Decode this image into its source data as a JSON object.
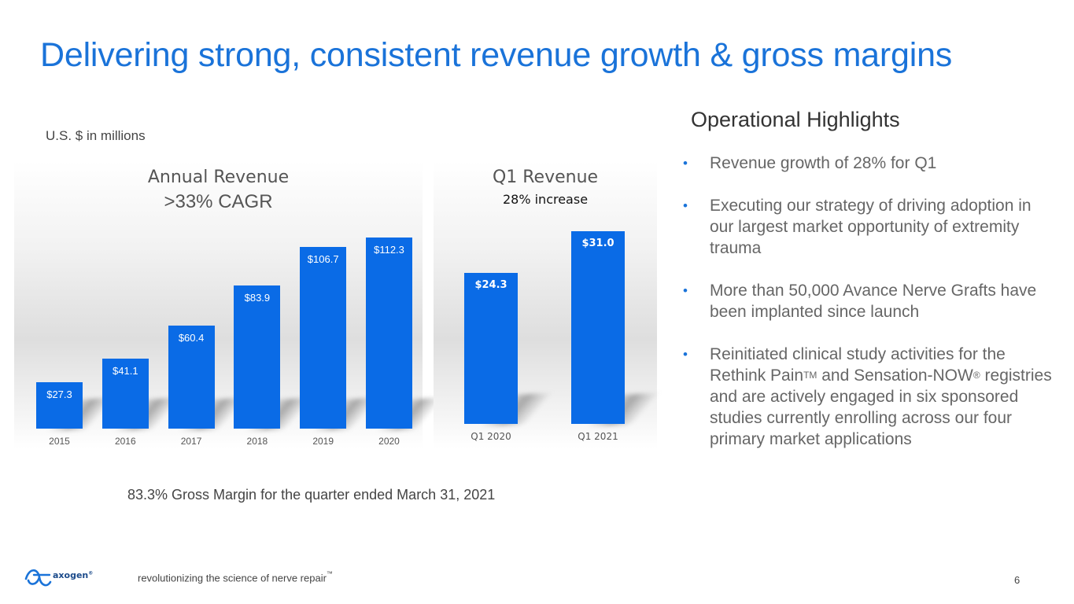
{
  "title": "Delivering strong, consistent revenue growth & gross margins",
  "units_note": "U.S. $ in millions",
  "gross_margin_note": "83.3% Gross Margin for the quarter ended March 31, 2021",
  "colors": {
    "accent": "#1a73d9",
    "bar": "#0a6be6"
  },
  "chart_data": [
    {
      "type": "bar",
      "title": "Annual Revenue",
      "subtitle": ">33% CAGR",
      "categories": [
        "2015",
        "2016",
        "2017",
        "2018",
        "2019",
        "2020"
      ],
      "values": [
        27.3,
        41.1,
        60.4,
        83.9,
        106.7,
        112.3
      ],
      "value_labels": [
        "$27.3",
        "$41.1",
        "$60.4",
        "$83.9",
        "$106.7",
        "$112.3"
      ],
      "ylim": [
        0,
        115
      ]
    },
    {
      "type": "bar",
      "title": "Q1 Revenue",
      "subtitle": "28% increase",
      "categories": [
        "Q1 2020",
        "Q1 2021"
      ],
      "values": [
        24.3,
        31.0
      ],
      "value_labels": [
        "$24.3",
        "$31.0"
      ],
      "ylim": [
        0,
        31
      ]
    }
  ],
  "highlights": {
    "heading": "Operational Highlights",
    "items": [
      "Revenue growth of 28% for Q1",
      "Executing our strategy of driving adoption in our largest market opportunity of extremity trauma",
      "More than 50,000 Avance Nerve Grafts have been implanted since launch"
    ],
    "item4": {
      "part1": "Reinitiated clinical study activities for the Rethink Pain",
      "sup1": "TM",
      "part2": " and Sensation-NOW",
      "sup2": "®",
      "part3": " registries and are actively engaged in six sponsored studies currently enrolling across our four primary market applications"
    }
  },
  "footer": {
    "logo_text": "axogen",
    "logo_mark": "®",
    "tagline": "revolutionizing the science of nerve repair",
    "tagline_mark": "™",
    "page_number": "6"
  }
}
